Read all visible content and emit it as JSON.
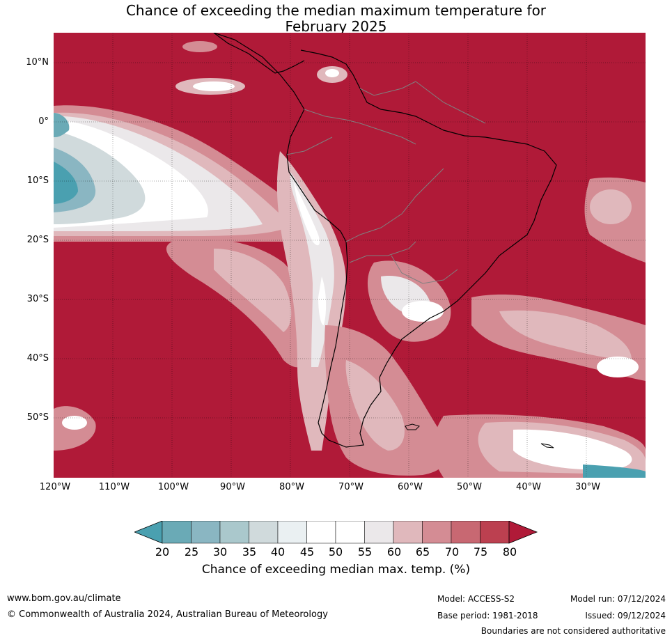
{
  "title_line1": "Chance of exceeding the median maximum temperature for",
  "title_line2": "February 2025",
  "lat_labels": [
    "10°N",
    "0°",
    "10°S",
    "20°S",
    "30°S",
    "40°S",
    "50°S"
  ],
  "lon_labels": [
    "120°W",
    "110°W",
    "100°W",
    "90°W",
    "80°W",
    "70°W",
    "60°W",
    "50°W",
    "40°W",
    "30°W"
  ],
  "colorbar": {
    "ticks": [
      "20",
      "25",
      "30",
      "35",
      "40",
      "45",
      "50",
      "55",
      "60",
      "65",
      "70",
      "75",
      "80"
    ],
    "colors": [
      "#4aa0b0",
      "#6aaab6",
      "#8ab6c2",
      "#aac8cc",
      "#d0dadc",
      "#eaf0f2",
      "#ffffff",
      "#ffffff",
      "#ebe8ea",
      "#e0b8bc",
      "#d48c94",
      "#c86872",
      "#bc4050",
      "#b01a38"
    ],
    "label": "Chance of exceeding median max. temp. (%)"
  },
  "footer": {
    "website": "www.bom.gov.au/climate",
    "copyright": "© Commonwealth of Australia 2024, Australian Bureau of Meteorology",
    "model": "Model: ACCESS-S2",
    "base_period": "Base period: 1981-2018",
    "model_run": "Model run: 07/12/2024",
    "issued": "Issued: 09/12/2024",
    "disclaimer": "Boundaries are not considered authoritative"
  },
  "map_extent": {
    "lon_min": -120,
    "lon_max": -20,
    "lat_min": -60,
    "lat_max": 15
  }
}
